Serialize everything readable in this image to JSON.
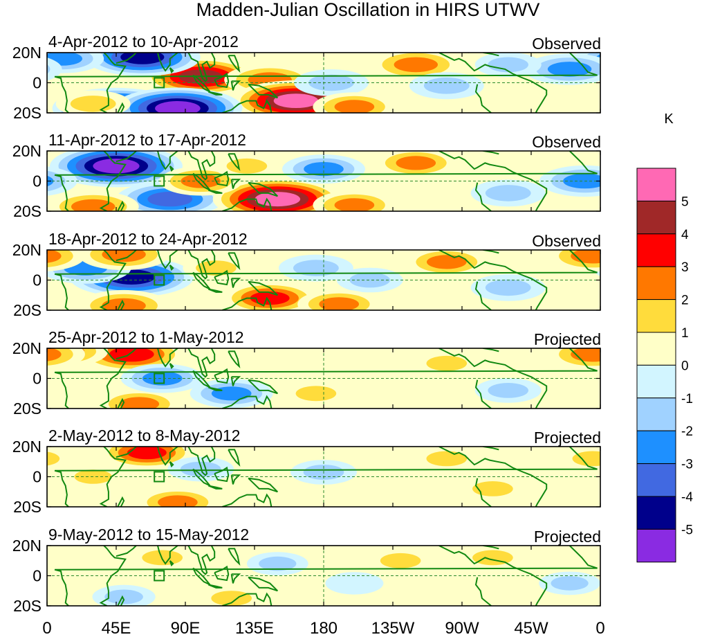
{
  "chart_data": {
    "type": "heatmap",
    "title": "Madden-Julian Oscillation in HIRS UTWV",
    "colorbar": {
      "unit": "K",
      "levels": [
        "5",
        "4",
        "3",
        "2",
        "1",
        "0",
        "-1",
        "-2",
        "-3",
        "-4",
        "-5"
      ],
      "colors": [
        "#ff69b4",
        "#a02828",
        "#ff0000",
        "#ff7800",
        "#ffdc3c",
        "#ffffc8",
        "#d2f5ff",
        "#a0d2ff",
        "#1e90ff",
        "#4169e1",
        "#00008b",
        "#8a2be2"
      ]
    },
    "x_ticks": [
      "0",
      "45E",
      "90E",
      "135E",
      "180",
      "135W",
      "90W",
      "45W",
      "0"
    ],
    "x_range_deg": [
      0,
      360
    ],
    "y_ticks": [
      "20N",
      "0",
      "20S"
    ],
    "y_range_deg": [
      -20,
      20
    ],
    "reference_lines": {
      "equator": "0",
      "dateline": "180"
    },
    "panels": [
      {
        "period": "4-Apr-2012 to 10-Apr-2012",
        "type": "Observed",
        "anomalies": [
          {
            "lon": 100,
            "lat": 4,
            "value": 4.5
          },
          {
            "lon": 145,
            "lat": 2,
            "value": 3
          },
          {
            "lon": 162,
            "lat": -12,
            "value": 5.2
          },
          {
            "lon": 45,
            "lat": -17,
            "value": -5.2
          },
          {
            "lon": 85,
            "lat": -17,
            "value": -5.3
          },
          {
            "lon": 62,
            "lat": 17,
            "value": -4.5
          },
          {
            "lon": 10,
            "lat": 16,
            "value": -2.5
          },
          {
            "lon": 240,
            "lat": 12,
            "value": 3
          },
          {
            "lon": 260,
            "lat": -2,
            "value": -2
          },
          {
            "lon": 340,
            "lat": 9,
            "value": -3
          },
          {
            "lon": 185,
            "lat": 0,
            "value": -2
          },
          {
            "lon": 30,
            "lat": -14,
            "value": 2
          },
          {
            "lon": 200,
            "lat": -16,
            "value": 2.5
          },
          {
            "lon": 300,
            "lat": 12,
            "value": -1.5
          }
        ]
      },
      {
        "period": "11-Apr-2012 to 17-Apr-2012",
        "type": "Observed",
        "anomalies": [
          {
            "lon": 45,
            "lat": 10,
            "value": -5.5
          },
          {
            "lon": 80,
            "lat": -12,
            "value": -4
          },
          {
            "lon": 150,
            "lat": -12,
            "value": 5.3
          },
          {
            "lon": 100,
            "lat": 0,
            "value": 2.5
          },
          {
            "lon": 180,
            "lat": 8,
            "value": -2.5
          },
          {
            "lon": 240,
            "lat": 12,
            "value": 2.5
          },
          {
            "lon": 300,
            "lat": -8,
            "value": -2
          },
          {
            "lon": 30,
            "lat": -17,
            "value": 3
          },
          {
            "lon": 350,
            "lat": 0,
            "value": -3
          },
          {
            "lon": 200,
            "lat": -16,
            "value": 2.5
          },
          {
            "lon": 130,
            "lat": 10,
            "value": 1.5
          }
        ]
      },
      {
        "period": "18-Apr-2012 to 24-Apr-2012",
        "type": "Observed",
        "anomalies": [
          {
            "lon": 55,
            "lat": 2,
            "value": -5
          },
          {
            "lon": 25,
            "lat": 8,
            "value": -3
          },
          {
            "lon": 50,
            "lat": 17,
            "value": 3
          },
          {
            "lon": 50,
            "lat": -17,
            "value": 3
          },
          {
            "lon": 145,
            "lat": -12,
            "value": 3.2
          },
          {
            "lon": 175,
            "lat": 8,
            "value": -2
          },
          {
            "lon": 260,
            "lat": 12,
            "value": 2.5
          },
          {
            "lon": 355,
            "lat": 16,
            "value": 3
          },
          {
            "lon": 210,
            "lat": 0,
            "value": -1.5
          },
          {
            "lon": 300,
            "lat": -5,
            "value": -2
          },
          {
            "lon": 190,
            "lat": -16,
            "value": 2.5
          },
          {
            "lon": 110,
            "lat": 8,
            "value": 1.5
          }
        ]
      },
      {
        "period": "25-Apr-2012 to 1-May-2012",
        "type": "Projected",
        "anomalies": [
          {
            "lon": 55,
            "lat": 16,
            "value": 4
          },
          {
            "lon": 10,
            "lat": 18,
            "value": 3
          },
          {
            "lon": 60,
            "lat": -17,
            "value": 2.5
          },
          {
            "lon": 75,
            "lat": 0,
            "value": -2.5
          },
          {
            "lon": 120,
            "lat": -10,
            "value": -2.5
          },
          {
            "lon": 355,
            "lat": 16,
            "value": 3
          },
          {
            "lon": 175,
            "lat": -10,
            "value": 1.5
          },
          {
            "lon": 260,
            "lat": 10,
            "value": 1.5
          },
          {
            "lon": 300,
            "lat": -8,
            "value": -1.5
          },
          {
            "lon": 220,
            "lat": 0,
            "value": 1
          }
        ]
      },
      {
        "period": "2-May-2012 to 8-May-2012",
        "type": "Projected",
        "anomalies": [
          {
            "lon": 65,
            "lat": 16,
            "value": 3.2
          },
          {
            "lon": 85,
            "lat": -17,
            "value": 2.5
          },
          {
            "lon": 100,
            "lat": 5,
            "value": -1.5
          },
          {
            "lon": 30,
            "lat": 0,
            "value": 1.2
          },
          {
            "lon": 180,
            "lat": 3,
            "value": -1.5
          },
          {
            "lon": 260,
            "lat": 12,
            "value": 1.5
          },
          {
            "lon": 290,
            "lat": -8,
            "value": 1.5
          },
          {
            "lon": 355,
            "lat": 12,
            "value": 1.5
          },
          {
            "lon": 210,
            "lat": -12,
            "value": 1
          }
        ]
      },
      {
        "period": "9-May-2012 to 15-May-2012",
        "type": "Projected",
        "anomalies": [
          {
            "lon": 75,
            "lat": 12,
            "value": 1.5
          },
          {
            "lon": 120,
            "lat": -15,
            "value": 1.5
          },
          {
            "lon": 50,
            "lat": -14,
            "value": -1.3
          },
          {
            "lon": 150,
            "lat": 8,
            "value": -1.2
          },
          {
            "lon": 230,
            "lat": 10,
            "value": 1.5
          },
          {
            "lon": 290,
            "lat": 12,
            "value": 1.5
          },
          {
            "lon": 340,
            "lat": -5,
            "value": -1.2
          },
          {
            "lon": 200,
            "lat": -5,
            "value": -1
          }
        ]
      }
    ]
  }
}
